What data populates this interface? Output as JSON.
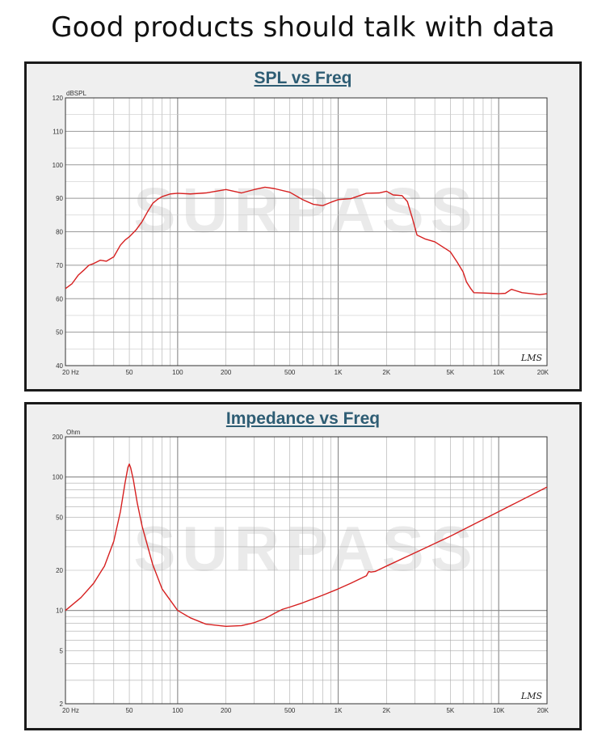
{
  "page": {
    "headline": "Good products should talk with data"
  },
  "watermark_text": "SURPASS",
  "colors": {
    "curve": "#d62020",
    "title": "#2e5d74",
    "grid": "#aaaaaa",
    "panel": "#efefef"
  },
  "chart_data": [
    {
      "type": "line",
      "title": "SPL vs Freq",
      "ylabel": "dBSPL",
      "xlabel": "",
      "x_scale": "log",
      "xlim": [
        20,
        20000
      ],
      "ylim": [
        40,
        120
      ],
      "x_ticks": [
        {
          "value": 20,
          "label": "20  Hz"
        },
        {
          "value": 50,
          "label": "50"
        },
        {
          "value": 100,
          "label": "100"
        },
        {
          "value": 200,
          "label": "200"
        },
        {
          "value": 500,
          "label": "500"
        },
        {
          "value": 1000,
          "label": "1K"
        },
        {
          "value": 2000,
          "label": "2K"
        },
        {
          "value": 5000,
          "label": "5K"
        },
        {
          "value": 10000,
          "label": "10K"
        },
        {
          "value": 20000,
          "label": "20K"
        }
      ],
      "y_ticks": [
        {
          "value": 40,
          "label": "40"
        },
        {
          "value": 50,
          "label": "50"
        },
        {
          "value": 60,
          "label": "60"
        },
        {
          "value": 70,
          "label": "70"
        },
        {
          "value": 80,
          "label": "80"
        },
        {
          "value": 90,
          "label": "90"
        },
        {
          "value": 100,
          "label": "100"
        },
        {
          "value": 110,
          "label": "110"
        },
        {
          "value": 120,
          "label": "120"
        }
      ],
      "corner_mark": "LMS",
      "grid": true,
      "series": [
        {
          "x": [
            20,
            22,
            24,
            26,
            28,
            30,
            33,
            36,
            40,
            44,
            47,
            50,
            55,
            60,
            65,
            70,
            75,
            80,
            90,
            100,
            120,
            150,
            200,
            250,
            300,
            350,
            400,
            500,
            600,
            700,
            800,
            900,
            1000,
            1200,
            1500,
            1800,
            2000,
            2200,
            2500,
            2700,
            2900,
            3100,
            3500,
            4000,
            5000,
            5500,
            6000,
            6300,
            6700,
            7000,
            8000,
            9000,
            10000,
            11000,
            12000,
            14000,
            16000,
            18000,
            20000
          ],
          "y": [
            63,
            64.5,
            67,
            68.5,
            70,
            70.5,
            71.5,
            71.2,
            72.5,
            76,
            77.5,
            78.5,
            80.5,
            83,
            86,
            88.5,
            89.7,
            90.5,
            91.3,
            91.5,
            91.3,
            91.6,
            92.6,
            91.6,
            92.6,
            93.3,
            92.9,
            91.8,
            89.6,
            88.2,
            87.8,
            88.8,
            89.6,
            89.9,
            91.5,
            91.6,
            92.1,
            91,
            90.8,
            89,
            84,
            79,
            77.8,
            77,
            74,
            71,
            68,
            65,
            63,
            61.8,
            61.7,
            61.6,
            61.5,
            61.6,
            62.8,
            61.8,
            61.5,
            61.2,
            61.5
          ]
        }
      ]
    },
    {
      "type": "line",
      "title": "Impedance vs Freq",
      "ylabel": "Ohm",
      "xlabel": "",
      "x_scale": "log",
      "y_scale": "log",
      "xlim": [
        20,
        20000
      ],
      "ylim": [
        2,
        200
      ],
      "x_ticks": [
        {
          "value": 20,
          "label": "20  Hz"
        },
        {
          "value": 50,
          "label": "50"
        },
        {
          "value": 100,
          "label": "100"
        },
        {
          "value": 200,
          "label": "200"
        },
        {
          "value": 500,
          "label": "500"
        },
        {
          "value": 1000,
          "label": "1K"
        },
        {
          "value": 2000,
          "label": "2K"
        },
        {
          "value": 5000,
          "label": "5K"
        },
        {
          "value": 10000,
          "label": "10K"
        },
        {
          "value": 20000,
          "label": "20K"
        }
      ],
      "y_ticks": [
        {
          "value": 2,
          "label": "2"
        },
        {
          "value": 5,
          "label": "5"
        },
        {
          "value": 10,
          "label": "10"
        },
        {
          "value": 20,
          "label": "20"
        },
        {
          "value": 50,
          "label": "50"
        },
        {
          "value": 100,
          "label": "100"
        },
        {
          "value": 200,
          "label": "200"
        }
      ],
      "corner_mark": "LMS",
      "grid": true,
      "series": [
        {
          "x": [
            20,
            25,
            30,
            35,
            40,
            44,
            47,
            49,
            50,
            51,
            53,
            56,
            60,
            70,
            80,
            100,
            120,
            150,
            200,
            250,
            300,
            350,
            400,
            450,
            500,
            600,
            800,
            1000,
            1200,
            1500,
            1550,
            1600,
            1700,
            2000,
            3000,
            5000,
            10000,
            20000
          ],
          "y": [
            10,
            12.5,
            16,
            21.5,
            33,
            55,
            90,
            118,
            125,
            117,
            95,
            64,
            43,
            22,
            14.5,
            10,
            8.8,
            7.9,
            7.6,
            7.7,
            8.1,
            8.7,
            9.5,
            10.2,
            10.6,
            11.4,
            13,
            14.5,
            16,
            18.2,
            19.6,
            19.4,
            19.6,
            21.5,
            27,
            36,
            55,
            84
          ]
        }
      ]
    }
  ]
}
